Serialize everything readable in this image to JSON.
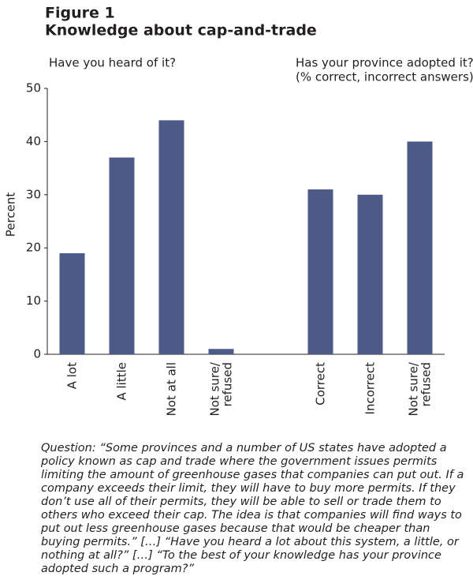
{
  "chart_data": {
    "type": "bar",
    "title": "Figure 1",
    "subtitle": "Knowledge about cap-and-trade",
    "annotations": [
      "Have you heard of it?",
      "Has your province adopted it?",
      "(% correct, incorrect answers)"
    ],
    "y_label": "Percent",
    "categories": [
      "A lot",
      "A little",
      "Not at all",
      "Not sure/\nrefused",
      null,
      "Correct",
      "Incorrect",
      "Not sure/\nrefused"
    ],
    "values": [
      19,
      37,
      44,
      1,
      null,
      31,
      30,
      40
    ],
    "color": "#4b5a86",
    "ylim": [
      0,
      50
    ],
    "yticks": [
      0,
      10,
      20,
      30,
      40,
      50
    ],
    "grid": false,
    "note": "Question: “Some provinces and a number of US states have adopted a policy known as cap and trade where the government issues permits limiting the amount of greenhouse gases that companies can put out. If a company exceeds their limit, they will have to buy more permits. If they don’t use all of their permits, they will be able to sell or trade them to others who exceed their cap. The idea is that companies will find ways to put out less greenhouse gases because that would be cheaper than buying permits.” […] “Have you heard a lot about this system, a little, or nothing at all?” […] “To the best of your knowledge has your province adopted such a program?”"
  }
}
